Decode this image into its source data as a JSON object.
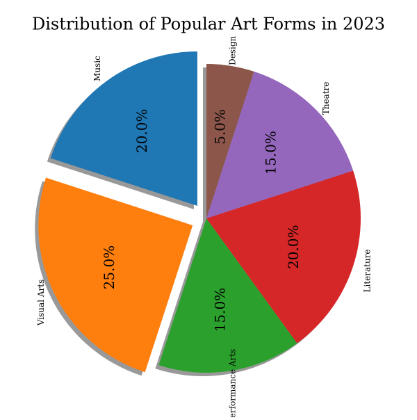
{
  "chart_data": {
    "type": "pie",
    "title": "Distribution of Popular Art Forms in 2023",
    "categories": [
      "Music",
      "Visual Arts",
      "Performance Arts",
      "Literature",
      "Theatre",
      "Design"
    ],
    "values": [
      20,
      25,
      15,
      20,
      15,
      5
    ],
    "value_labels": [
      "20.0%",
      "25.0%",
      "15.0%",
      "20.0%",
      "15.0%",
      "5.0%"
    ],
    "colors": [
      "#1f77b4",
      "#ff7f0e",
      "#2ca02c",
      "#d62728",
      "#9467bd",
      "#8c564b"
    ],
    "explode": [
      0.1,
      0.1,
      0,
      0,
      0,
      0
    ],
    "start_angle": 90,
    "shadow": true
  }
}
